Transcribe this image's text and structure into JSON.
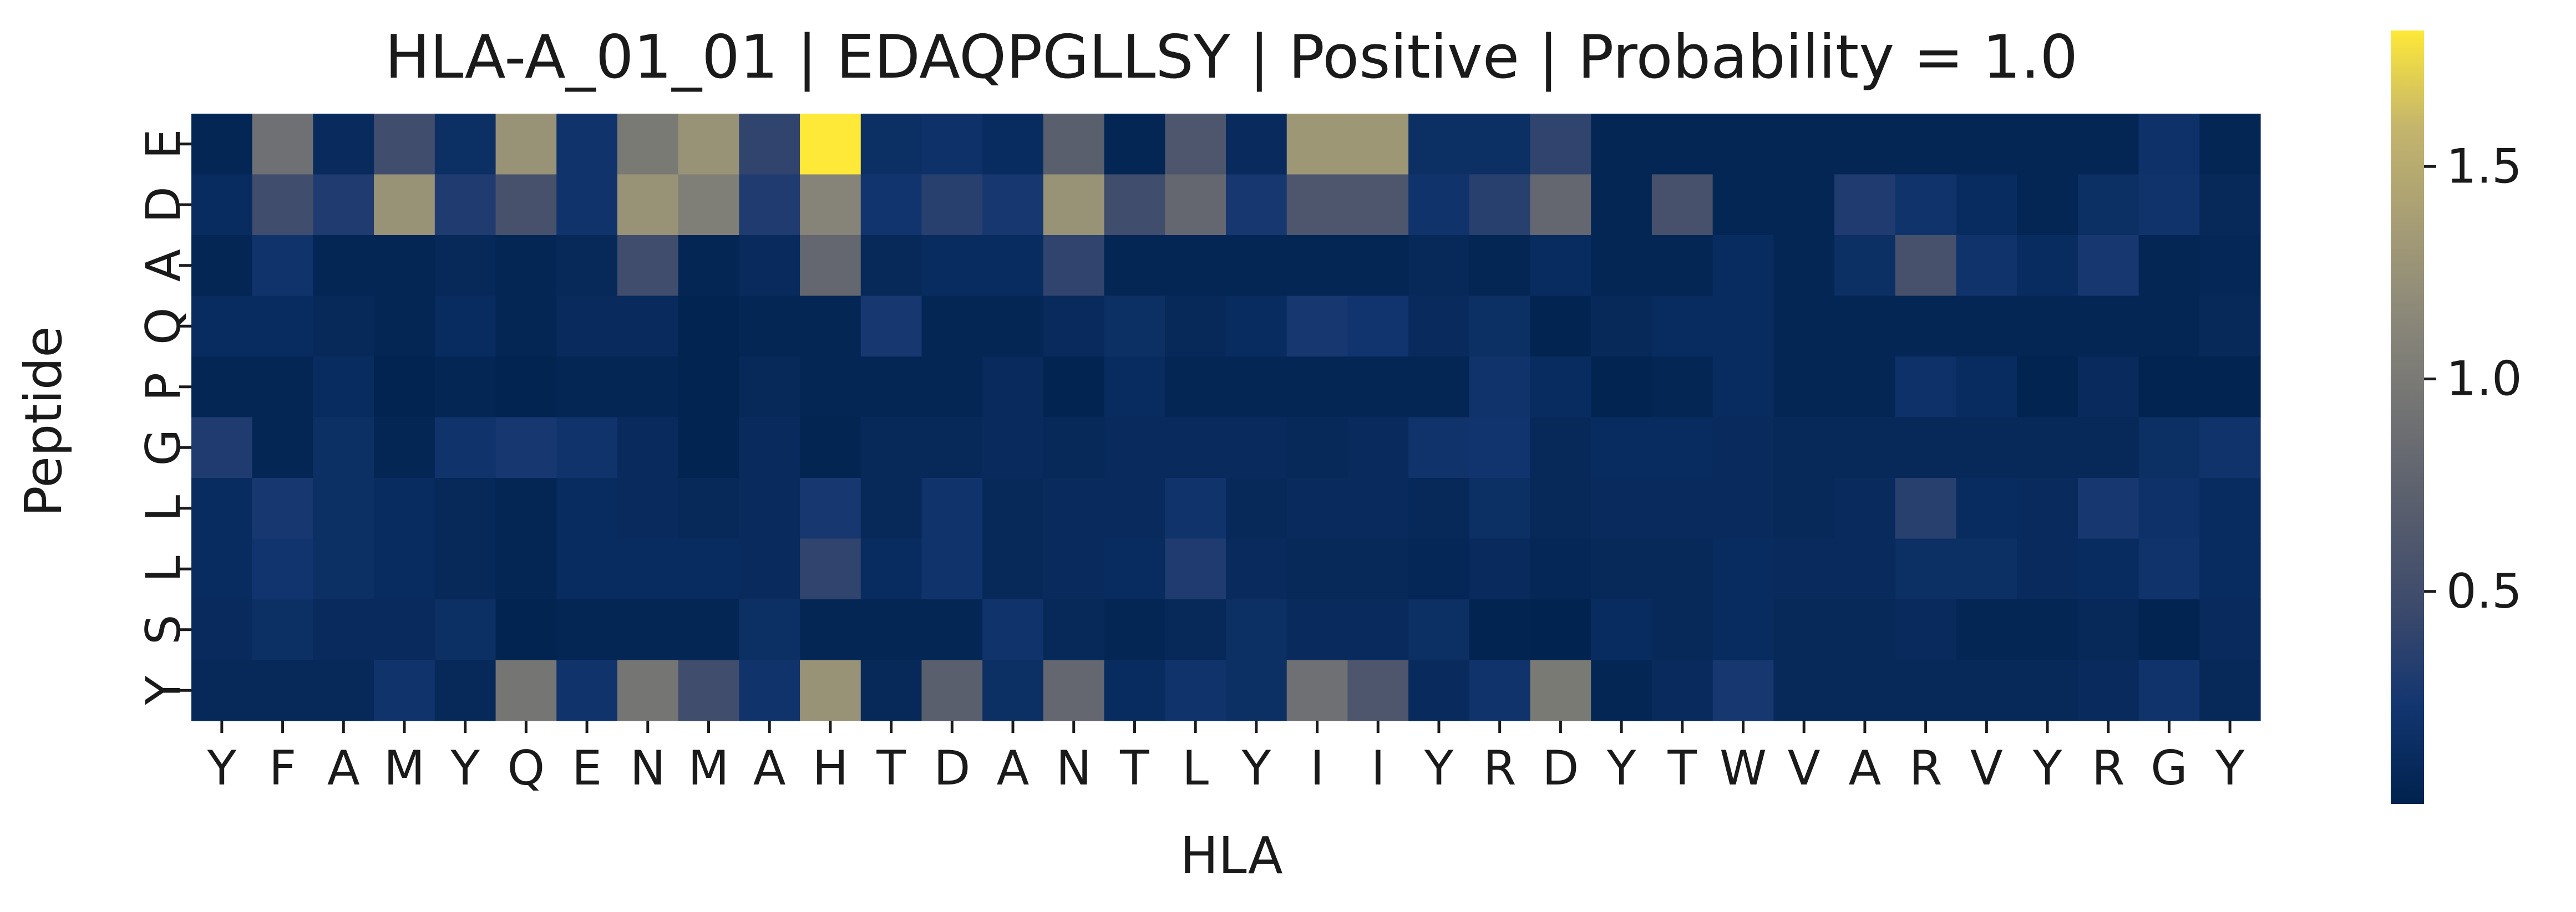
{
  "chart_data": {
    "type": "heatmap",
    "title": "HLA-A_01_01 | EDAQPGLLSY | Positive | Probability = 1.0",
    "xlabel": "HLA",
    "ylabel": "Peptide",
    "x_tick_labels": [
      "Y",
      "F",
      "A",
      "M",
      "Y",
      "Q",
      "E",
      "N",
      "M",
      "A",
      "H",
      "T",
      "D",
      "A",
      "N",
      "T",
      "L",
      "Y",
      "I",
      "I",
      "Y",
      "R",
      "D",
      "Y",
      "T",
      "W",
      "V",
      "A",
      "R",
      "V",
      "Y",
      "R",
      "G",
      "Y"
    ],
    "y_tick_labels": [
      "E",
      "D",
      "A",
      "Q",
      "P",
      "G",
      "L",
      "L",
      "S",
      "Y"
    ],
    "colormap": "cividis",
    "colorbar": {
      "ticks": [
        0.5,
        1.0,
        1.5
      ],
      "tick_labels": [
        "0.5",
        "1.0",
        "1.5"
      ],
      "vmin": 0.0,
      "vmax": 1.82
    },
    "values": [
      [
        0.05,
        0.9,
        0.1,
        0.5,
        0.15,
        1.25,
        0.2,
        1.0,
        1.25,
        0.4,
        1.82,
        0.15,
        0.18,
        0.12,
        0.7,
        0.05,
        0.6,
        0.1,
        1.3,
        1.3,
        0.15,
        0.15,
        0.4,
        0.05,
        0.05,
        0.05,
        0.05,
        0.05,
        0.05,
        0.05,
        0.05,
        0.05,
        0.18,
        0.05
      ],
      [
        0.12,
        0.5,
        0.3,
        1.25,
        0.3,
        0.55,
        0.2,
        1.25,
        1.05,
        0.3,
        1.1,
        0.22,
        0.35,
        0.25,
        1.25,
        0.5,
        0.8,
        0.25,
        0.6,
        0.6,
        0.2,
        0.35,
        0.8,
        0.05,
        0.55,
        0.05,
        0.05,
        0.3,
        0.2,
        0.12,
        0.05,
        0.15,
        0.2,
        0.08
      ],
      [
        0.05,
        0.2,
        0.05,
        0.05,
        0.08,
        0.05,
        0.08,
        0.5,
        0.05,
        0.1,
        0.8,
        0.08,
        0.12,
        0.12,
        0.4,
        0.05,
        0.05,
        0.05,
        0.05,
        0.05,
        0.08,
        0.05,
        0.12,
        0.05,
        0.05,
        0.12,
        0.05,
        0.15,
        0.55,
        0.2,
        0.12,
        0.25,
        0.05,
        0.06
      ],
      [
        0.12,
        0.12,
        0.08,
        0.05,
        0.12,
        0.05,
        0.1,
        0.1,
        0.02,
        0.05,
        0.05,
        0.25,
        0.05,
        0.05,
        0.1,
        0.15,
        0.08,
        0.12,
        0.25,
        0.22,
        0.1,
        0.15,
        0.02,
        0.08,
        0.12,
        0.12,
        0.05,
        0.05,
        0.05,
        0.05,
        0.05,
        0.05,
        0.05,
        0.08
      ],
      [
        0.05,
        0.05,
        0.12,
        0.02,
        0.05,
        0.02,
        0.05,
        0.05,
        0.02,
        0.08,
        0.05,
        0.05,
        0.05,
        0.1,
        0.02,
        0.12,
        0.05,
        0.05,
        0.05,
        0.05,
        0.05,
        0.2,
        0.12,
        0.02,
        0.05,
        0.12,
        0.05,
        0.05,
        0.18,
        0.12,
        0.02,
        0.1,
        0.02,
        0.02
      ],
      [
        0.3,
        0.05,
        0.15,
        0.05,
        0.2,
        0.25,
        0.2,
        0.1,
        0.02,
        0.1,
        0.03,
        0.08,
        0.08,
        0.1,
        0.08,
        0.1,
        0.1,
        0.1,
        0.08,
        0.1,
        0.2,
        0.22,
        0.08,
        0.12,
        0.12,
        0.1,
        0.08,
        0.08,
        0.08,
        0.08,
        0.08,
        0.08,
        0.15,
        0.2
      ],
      [
        0.12,
        0.25,
        0.15,
        0.12,
        0.08,
        0.05,
        0.12,
        0.1,
        0.08,
        0.1,
        0.25,
        0.08,
        0.2,
        0.08,
        0.1,
        0.1,
        0.2,
        0.08,
        0.1,
        0.1,
        0.08,
        0.15,
        0.08,
        0.1,
        0.1,
        0.1,
        0.08,
        0.1,
        0.35,
        0.12,
        0.1,
        0.25,
        0.18,
        0.12
      ],
      [
        0.12,
        0.22,
        0.15,
        0.12,
        0.08,
        0.05,
        0.12,
        0.12,
        0.12,
        0.1,
        0.4,
        0.12,
        0.2,
        0.08,
        0.1,
        0.12,
        0.3,
        0.1,
        0.08,
        0.08,
        0.06,
        0.1,
        0.06,
        0.08,
        0.08,
        0.12,
        0.1,
        0.1,
        0.15,
        0.15,
        0.1,
        0.12,
        0.2,
        0.12
      ],
      [
        0.1,
        0.15,
        0.1,
        0.1,
        0.15,
        0.02,
        0.05,
        0.05,
        0.05,
        0.15,
        0.05,
        0.05,
        0.05,
        0.2,
        0.08,
        0.05,
        0.08,
        0.15,
        0.1,
        0.1,
        0.15,
        0.02,
        0.01,
        0.12,
        0.08,
        0.12,
        0.08,
        0.08,
        0.1,
        0.05,
        0.05,
        0.08,
        0.02,
        0.1
      ],
      [
        0.08,
        0.08,
        0.08,
        0.2,
        0.08,
        0.95,
        0.2,
        0.95,
        0.5,
        0.2,
        1.25,
        0.08,
        0.7,
        0.15,
        0.8,
        0.12,
        0.2,
        0.15,
        0.9,
        0.6,
        0.1,
        0.2,
        1.0,
        0.05,
        0.1,
        0.25,
        0.08,
        0.08,
        0.08,
        0.08,
        0.08,
        0.1,
        0.2,
        0.08
      ]
    ]
  }
}
